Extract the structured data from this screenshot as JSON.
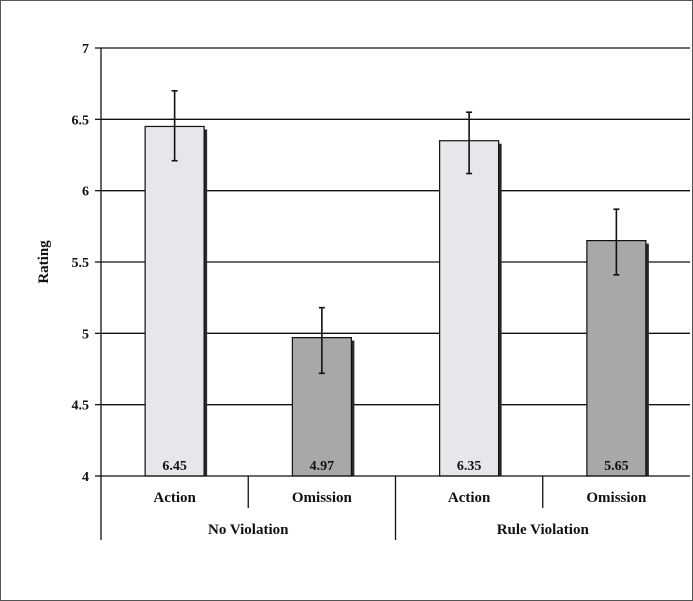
{
  "chart_data": {
    "type": "bar",
    "ylabel": "Rating",
    "ylim": [
      4,
      7
    ],
    "yticks": [
      4,
      4.5,
      5,
      5.5,
      6,
      6.5,
      7
    ],
    "ytick_labels": [
      "4",
      "4.5",
      "5",
      "5.5",
      "6",
      "6.5",
      "7"
    ],
    "grid": true,
    "categories": [
      "Action",
      "Omission",
      "Action",
      "Omission"
    ],
    "groups": [
      {
        "label": "No Violation",
        "categories": [
          "Action",
          "Omission"
        ]
      },
      {
        "label": "Rule Violation",
        "categories": [
          "Action",
          "Omission"
        ]
      }
    ],
    "values": [
      6.45,
      4.97,
      6.35,
      5.65
    ],
    "value_labels": [
      "6.45",
      "4.97",
      "6.35",
      "5.65"
    ],
    "error_upper": [
      6.7,
      5.18,
      6.55,
      5.87
    ],
    "error_lower": [
      6.21,
      4.72,
      6.12,
      5.41
    ],
    "bar_colors": [
      "#e8e6ea",
      "#a9a7a7",
      "#e8e6ea",
      "#a9a7a7"
    ]
  }
}
